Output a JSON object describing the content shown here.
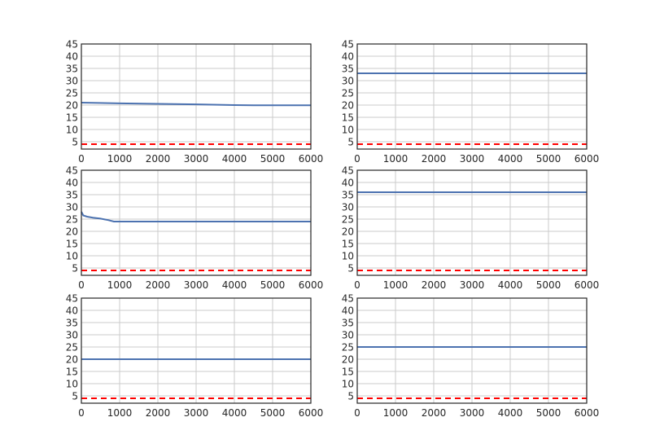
{
  "chart_data": [
    {
      "type": "line",
      "xlim": [
        0,
        6000
      ],
      "ylim": [
        2,
        45
      ],
      "xticks": [
        0,
        1000,
        2000,
        3000,
        4000,
        5000,
        6000
      ],
      "yticks": [
        5,
        10,
        15,
        20,
        25,
        30,
        35,
        40,
        45
      ],
      "grid": true,
      "series": [
        {
          "style": "solid",
          "color": "#4c72b0",
          "x": [
            0,
            1000,
            2000,
            3000,
            4000,
            4500,
            5000,
            6000
          ],
          "y": [
            21.0,
            20.7,
            20.5,
            20.3,
            20.0,
            19.9,
            19.9,
            19.9
          ]
        },
        {
          "style": "dashed",
          "color": "#ff0000",
          "x": [
            0,
            6000
          ],
          "y": [
            4,
            4
          ]
        }
      ]
    },
    {
      "type": "line",
      "xlim": [
        0,
        6000
      ],
      "ylim": [
        2,
        45
      ],
      "xticks": [
        0,
        1000,
        2000,
        3000,
        4000,
        5000,
        6000
      ],
      "yticks": [
        5,
        10,
        15,
        20,
        25,
        30,
        35,
        40,
        45
      ],
      "grid": true,
      "series": [
        {
          "style": "solid",
          "color": "#4c72b0",
          "x": [
            0,
            6000
          ],
          "y": [
            33,
            33
          ]
        },
        {
          "style": "dashed",
          "color": "#ff0000",
          "x": [
            0,
            6000
          ],
          "y": [
            4,
            4
          ]
        }
      ]
    },
    {
      "type": "line",
      "xlim": [
        0,
        6000
      ],
      "ylim": [
        2,
        45
      ],
      "xticks": [
        0,
        1000,
        2000,
        3000,
        4000,
        5000,
        6000
      ],
      "yticks": [
        5,
        10,
        15,
        20,
        25,
        30,
        35,
        40,
        45
      ],
      "grid": true,
      "series": [
        {
          "style": "solid",
          "color": "#4c72b0",
          "x": [
            0,
            50,
            150,
            300,
            500,
            700,
            850,
            1000,
            2000,
            3000,
            4000,
            5000,
            6000
          ],
          "y": [
            28,
            26.5,
            26,
            25.6,
            25.2,
            24.6,
            24,
            24,
            24,
            24,
            24,
            24,
            24
          ]
        },
        {
          "style": "dashed",
          "color": "#ff0000",
          "x": [
            0,
            6000
          ],
          "y": [
            4,
            4
          ]
        }
      ]
    },
    {
      "type": "line",
      "xlim": [
        0,
        6000
      ],
      "ylim": [
        2,
        45
      ],
      "xticks": [
        0,
        1000,
        2000,
        3000,
        4000,
        5000,
        6000
      ],
      "yticks": [
        5,
        10,
        15,
        20,
        25,
        30,
        35,
        40,
        45
      ],
      "grid": true,
      "series": [
        {
          "style": "solid",
          "color": "#4c72b0",
          "x": [
            0,
            6000
          ],
          "y": [
            36,
            36
          ]
        },
        {
          "style": "dashed",
          "color": "#ff0000",
          "x": [
            0,
            6000
          ],
          "y": [
            4,
            4
          ]
        }
      ]
    },
    {
      "type": "line",
      "xlim": [
        0,
        6000
      ],
      "ylim": [
        2,
        45
      ],
      "xticks": [
        0,
        1000,
        2000,
        3000,
        4000,
        5000,
        6000
      ],
      "yticks": [
        5,
        10,
        15,
        20,
        25,
        30,
        35,
        40,
        45
      ],
      "grid": true,
      "series": [
        {
          "style": "solid",
          "color": "#4c72b0",
          "x": [
            0,
            6000
          ],
          "y": [
            20,
            20
          ]
        },
        {
          "style": "dashed",
          "color": "#ff0000",
          "x": [
            0,
            6000
          ],
          "y": [
            4,
            4
          ]
        }
      ]
    },
    {
      "type": "line",
      "xlim": [
        0,
        6000
      ],
      "ylim": [
        2,
        45
      ],
      "xticks": [
        0,
        1000,
        2000,
        3000,
        4000,
        5000,
        6000
      ],
      "yticks": [
        5,
        10,
        15,
        20,
        25,
        30,
        35,
        40,
        45
      ],
      "grid": true,
      "series": [
        {
          "style": "solid",
          "color": "#4c72b0",
          "x": [
            0,
            6000
          ],
          "y": [
            25,
            25
          ]
        },
        {
          "style": "dashed",
          "color": "#ff0000",
          "x": [
            0,
            6000
          ],
          "y": [
            4,
            4
          ]
        }
      ]
    }
  ]
}
